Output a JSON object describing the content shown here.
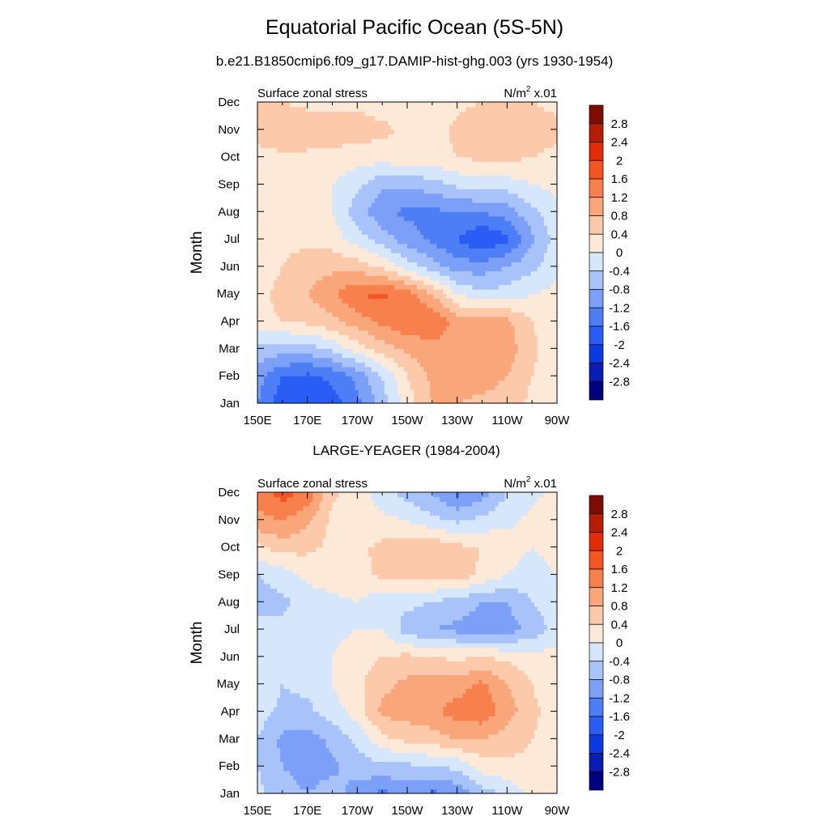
{
  "title": "Equatorial Pacific Ocean (5S-5N)",
  "subtitle": "b.e21.B1850cmip6.f09_g17.DAMIP-hist-ghg.003 (yrs 1930-1954)",
  "chart_data": [
    {
      "type": "heatmap",
      "panel_title": "",
      "left_label": "Surface zonal stress",
      "right_label_base": "N/m",
      "right_label_sup": "2",
      "right_label_suffix": " x.01",
      "ylabel": "Month",
      "xlabel": "",
      "x_ticks": [
        "150E",
        "170E",
        "170W",
        "150W",
        "130W",
        "110W",
        "90W"
      ],
      "x_values": [
        150,
        170,
        190,
        210,
        230,
        250,
        270
      ],
      "xlim": [
        150,
        270
      ],
      "y_ticks": [
        "Jan",
        "Feb",
        "Mar",
        "Apr",
        "May",
        "Jun",
        "Jul",
        "Aug",
        "Sep",
        "Oct",
        "Nov",
        "Dec"
      ],
      "ylim": [
        1,
        12
      ],
      "grid_row_months": [
        1,
        2,
        3,
        4,
        5,
        6,
        7,
        8,
        9,
        10,
        11,
        12
      ],
      "grid_col_longitudes": [
        150,
        160,
        170,
        180,
        190,
        200,
        210,
        220,
        230,
        240,
        250,
        260,
        270
      ],
      "z": [
        [
          -1.2,
          -1.9,
          -2.0,
          -1.8,
          -1.3,
          -0.6,
          0.2,
          0.8,
          0.8,
          0.7,
          0.6,
          0.3,
          0.1
        ],
        [
          -1.0,
          -1.6,
          -1.7,
          -1.5,
          -1.1,
          -0.4,
          0.4,
          0.9,
          1.0,
          1.0,
          0.8,
          0.4,
          0.1
        ],
        [
          -0.5,
          -0.6,
          -0.6,
          -0.3,
          0.2,
          0.6,
          0.9,
          1.0,
          1.1,
          1.1,
          1.0,
          0.5,
          0.1
        ],
        [
          0.3,
          0.4,
          0.5,
          0.7,
          1.0,
          1.3,
          1.5,
          1.6,
          1.0,
          0.9,
          0.9,
          0.4,
          0.1
        ],
        [
          0.3,
          0.5,
          0.8,
          1.1,
          1.6,
          1.7,
          1.4,
          0.8,
          0.0,
          -0.3,
          -0.2,
          0.0,
          0.1
        ],
        [
          0.2,
          0.4,
          0.6,
          0.7,
          0.6,
          0.3,
          -0.2,
          -0.6,
          -1.0,
          -1.0,
          -0.8,
          -0.5,
          -0.1
        ],
        [
          0.1,
          0.3,
          0.3,
          0.2,
          -0.2,
          -0.6,
          -1.0,
          -1.3,
          -1.6,
          -2.0,
          -1.7,
          -0.9,
          -0.2
        ],
        [
          0.1,
          0.2,
          0.2,
          0.0,
          -0.6,
          -1.1,
          -1.3,
          -1.3,
          -1.2,
          -1.2,
          -1.0,
          -0.5,
          -0.1
        ],
        [
          0.0,
          0.2,
          0.2,
          0.0,
          -0.3,
          -0.7,
          -0.7,
          -0.6,
          -0.3,
          -0.2,
          -0.2,
          0.0,
          0.1
        ],
        [
          0.1,
          0.3,
          0.3,
          0.3,
          0.2,
          0.2,
          0.3,
          0.3,
          0.4,
          0.5,
          0.5,
          0.4,
          0.3
        ],
        [
          0.8,
          0.8,
          0.7,
          0.6,
          0.6,
          0.5,
          0.3,
          0.2,
          0.5,
          0.7,
          0.7,
          0.6,
          0.5
        ],
        [
          0.4,
          0.4,
          0.3,
          0.3,
          0.3,
          0.2,
          0.2,
          0.3,
          0.3,
          0.4,
          0.4,
          0.4,
          0.3
        ]
      ],
      "colorbar_labels": [
        "2.8",
        "2.4",
        "2",
        "1.6",
        "1.2",
        "0.8",
        "0.4",
        "0",
        "-0.4",
        "-0.8",
        "-1.2",
        "-1.6",
        "-2",
        "-2.4",
        "-2.8"
      ]
    },
    {
      "type": "heatmap",
      "panel_title": "LARGE-YEAGER (1984-2004)",
      "left_label": "Surface zonal stress",
      "right_label_base": "N/m",
      "right_label_sup": "2",
      "right_label_suffix": " x.01",
      "ylabel": "Month",
      "xlabel": "",
      "x_ticks": [
        "150E",
        "170E",
        "170W",
        "150W",
        "130W",
        "110W",
        "90W"
      ],
      "x_values": [
        150,
        170,
        190,
        210,
        230,
        250,
        270
      ],
      "xlim": [
        150,
        270
      ],
      "y_ticks": [
        "Jan",
        "Feb",
        "Mar",
        "Apr",
        "May",
        "Jun",
        "Jul",
        "Aug",
        "Sep",
        "Oct",
        "Nov",
        "Dec"
      ],
      "ylim": [
        1,
        12
      ],
      "grid_row_months": [
        1,
        2,
        3,
        4,
        5,
        6,
        7,
        8,
        9,
        10,
        11,
        12
      ],
      "grid_col_longitudes": [
        150,
        160,
        170,
        180,
        190,
        200,
        210,
        220,
        230,
        240,
        250,
        260,
        270
      ],
      "z": [
        [
          -0.3,
          -0.6,
          -0.8,
          -0.6,
          -1.0,
          -1.3,
          -1.1,
          -1.3,
          -1.1,
          -0.6,
          -0.3,
          0.1,
          0.2
        ],
        [
          -0.4,
          -0.8,
          -1.0,
          -0.9,
          -0.6,
          -0.5,
          -0.5,
          -0.4,
          -0.3,
          0.2,
          0.3,
          0.3,
          0.2
        ],
        [
          -0.4,
          -0.9,
          -1.0,
          -0.7,
          -0.3,
          0.3,
          0.5,
          0.6,
          0.8,
          0.8,
          0.6,
          0.4,
          0.2
        ],
        [
          -0.2,
          -0.5,
          -0.5,
          -0.2,
          0.2,
          0.9,
          1.0,
          1.1,
          1.4,
          1.5,
          1.0,
          0.5,
          0.2
        ],
        [
          -0.1,
          -0.4,
          -0.3,
          0.0,
          0.3,
          0.7,
          0.9,
          1.0,
          1.0,
          1.3,
          0.8,
          0.4,
          0.1
        ],
        [
          -0.1,
          -0.3,
          -0.2,
          0.0,
          0.2,
          0.4,
          0.5,
          0.4,
          0.3,
          0.4,
          0.3,
          0.2,
          0.1
        ],
        [
          -0.2,
          -0.3,
          -0.2,
          -0.1,
          0.0,
          0.0,
          -0.6,
          -0.8,
          -0.9,
          -1.0,
          -1.0,
          -0.7,
          -0.2
        ],
        [
          -0.6,
          -0.5,
          -0.2,
          -0.1,
          0.0,
          -0.3,
          -0.3,
          -0.4,
          -0.6,
          -0.8,
          -0.8,
          -0.4,
          -0.1
        ],
        [
          -0.4,
          -0.2,
          0.1,
          0.2,
          0.3,
          0.5,
          0.5,
          0.6,
          0.7,
          0.3,
          0.0,
          -0.2,
          0.0
        ],
        [
          0.3,
          0.6,
          0.5,
          0.3,
          0.3,
          0.5,
          0.6,
          0.7,
          0.5,
          0.4,
          0.2,
          0.0,
          0.2
        ],
        [
          1.1,
          1.2,
          0.9,
          0.3,
          0.1,
          0.1,
          0.0,
          -0.3,
          -0.5,
          -0.3,
          -0.1,
          0.1,
          0.3
        ],
        [
          1.3,
          1.8,
          1.5,
          0.5,
          0.2,
          -0.2,
          -0.6,
          -0.8,
          -1.3,
          -1.0,
          -0.4,
          -0.1,
          0.1
        ]
      ],
      "colorbar_labels": [
        "2.8",
        "2.4",
        "2",
        "1.6",
        "1.2",
        "0.8",
        "0.4",
        "0",
        "-0.4",
        "-0.8",
        "-1.2",
        "-1.6",
        "-2",
        "-2.4",
        "-2.8"
      ]
    }
  ],
  "colors": {
    "palette_low_to_high": [
      "#00007f",
      "#0b1cb4",
      "#0d3ae0",
      "#2a5df5",
      "#4e7ef6",
      "#7c9ff8",
      "#a8c3f9",
      "#d6e6fb",
      "#fde9d8",
      "#fcc9aa",
      "#f9a67a",
      "#f7804d",
      "#f45522",
      "#e02c08",
      "#b51e05",
      "#7c0d00"
    ],
    "levels": [
      -2.8,
      -2.4,
      -2.0,
      -1.6,
      -1.2,
      -0.8,
      -0.4,
      0.0,
      0.4,
      0.8,
      1.2,
      1.6,
      2.0,
      2.4,
      2.8
    ]
  }
}
